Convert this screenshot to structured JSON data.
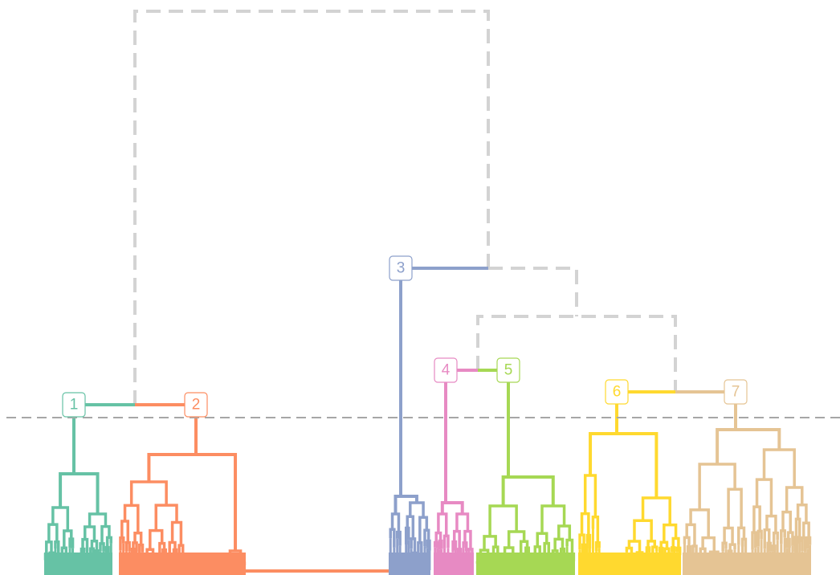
{
  "diagram": {
    "type": "dendrogram",
    "cut_line": {
      "style": "dashed",
      "color": "#a6a6a6"
    },
    "upper_tree_color": "#d3d3d3",
    "clusters": [
      {
        "label": "1",
        "color": "#66c2a5"
      },
      {
        "label": "2",
        "color": "#fc8d62"
      },
      {
        "label": "3",
        "color": "#8da0cb"
      },
      {
        "label": "4",
        "color": "#e78ac3"
      },
      {
        "label": "5",
        "color": "#a6d854"
      },
      {
        "label": "6",
        "color": "#ffd92f"
      },
      {
        "label": "7",
        "color": "#e5c494"
      }
    ]
  }
}
